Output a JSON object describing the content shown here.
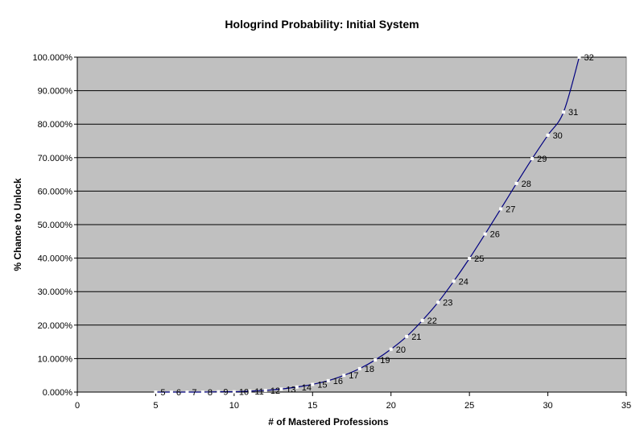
{
  "chart_data": {
    "type": "scatter",
    "title": "Hologrind Probability: Initial System",
    "xlabel": "# of Mastered Professions",
    "ylabel": "% Chance to Unlock",
    "xlim": [
      0,
      35
    ],
    "ylim": [
      0,
      100
    ],
    "x_ticks": [
      "0",
      "5",
      "10",
      "15",
      "20",
      "25",
      "30",
      "35"
    ],
    "y_ticks": [
      "0.000%",
      "10.000%",
      "20.000%",
      "30.000%",
      "40.000%",
      "50.000%",
      "60.000%",
      "70.000%",
      "80.000%",
      "90.000%",
      "100.000%"
    ],
    "grid": "horizontal",
    "plot_background": "#c0c0c0",
    "line_color": "#000080",
    "marker_color": "#ffffff",
    "series": [
      {
        "x": [
          5,
          6,
          7,
          8,
          9,
          10,
          11,
          12,
          13,
          14,
          15,
          16,
          17,
          18,
          19,
          20,
          21,
          22,
          23,
          24,
          25,
          26,
          27,
          28,
          29,
          30,
          31,
          32
        ],
        "y": [
          0.0,
          0.0,
          0.0,
          0.0,
          0.1,
          0.1,
          0.3,
          0.5,
          0.9,
          1.5,
          2.3,
          3.4,
          5.0,
          7.0,
          9.6,
          12.8,
          16.6,
          21.4,
          26.8,
          33.1,
          39.9,
          47.2,
          54.7,
          62.3,
          69.7,
          76.7,
          83.6,
          100.0
        ],
        "point_labels": [
          "5",
          "6",
          "7",
          "8",
          "9",
          "10",
          "11",
          "12",
          "13",
          "14",
          "15",
          "16",
          "17",
          "18",
          "19",
          "20",
          "21",
          "22",
          "23",
          "24",
          "25",
          "26",
          "27",
          "28",
          "29",
          "30",
          "31",
          "32"
        ]
      }
    ]
  }
}
